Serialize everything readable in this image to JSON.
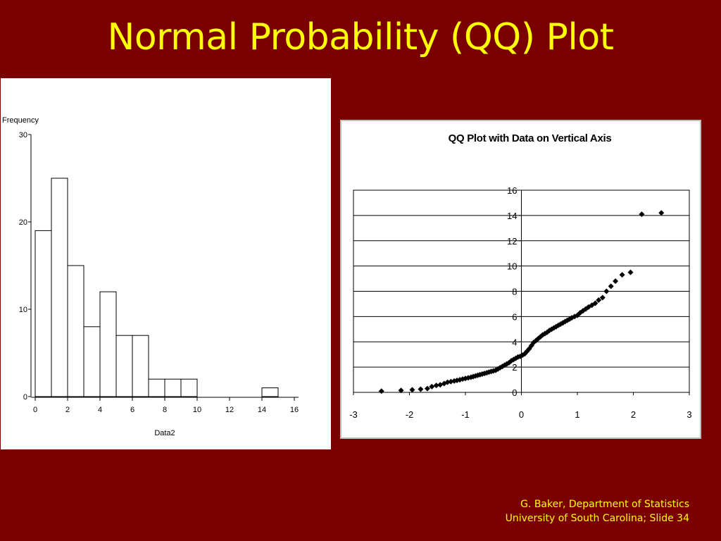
{
  "slide": {
    "title": "Normal Probability (QQ) Plot",
    "footer_line1": "G. Baker, Department of Statistics",
    "footer_line2": "University of South Carolina; Slide 34",
    "background_color": "#7a0000",
    "title_color": "#ffff00"
  },
  "chart_data": [
    {
      "type": "bar",
      "subtype": "histogram",
      "title": "",
      "xlabel": "Data2",
      "ylabel": "Frequency",
      "bin_edges": [
        0,
        1,
        2,
        3,
        4,
        5,
        6,
        7,
        8,
        9,
        10,
        11,
        12,
        13,
        14,
        15
      ],
      "values": [
        19,
        25,
        15,
        8,
        12,
        7,
        7,
        2,
        2,
        2,
        0,
        0,
        0,
        0,
        1
      ],
      "xlim": [
        0,
        16
      ],
      "ylim": [
        0,
        30
      ],
      "xticks": [
        "0",
        "2",
        "4",
        "6",
        "8",
        "10",
        "12",
        "14",
        "16"
      ],
      "yticks": [
        "0",
        "10",
        "20",
        "30"
      ],
      "grid": false
    },
    {
      "type": "scatter",
      "title": "QQ Plot with Data on Vertical Axis",
      "xlabel": "",
      "ylabel": "",
      "xlim": [
        -3,
        3
      ],
      "ylim": [
        0,
        16
      ],
      "xticks": [
        "-3",
        "-2",
        "-1",
        "0",
        "1",
        "2",
        "3"
      ],
      "yticks": [
        "0",
        "2",
        "4",
        "6",
        "8",
        "10",
        "12",
        "14",
        "16"
      ],
      "grid": true,
      "marker": "diamond",
      "marker_color": "#000000",
      "x": [
        -2.5,
        -2.15,
        -1.95,
        -1.8,
        -1.68,
        -1.6,
        -1.52,
        -1.45,
        -1.38,
        -1.32,
        -1.26,
        -1.2,
        -1.15,
        -1.1,
        -1.05,
        -1.0,
        -0.95,
        -0.9,
        -0.86,
        -0.82,
        -0.78,
        -0.74,
        -0.7,
        -0.66,
        -0.62,
        -0.58,
        -0.54,
        -0.5,
        -0.46,
        -0.42,
        -0.38,
        -0.34,
        -0.3,
        -0.26,
        -0.22,
        -0.18,
        -0.14,
        -0.1,
        -0.06,
        -0.02,
        0.02,
        0.06,
        0.1,
        0.14,
        0.18,
        0.22,
        0.26,
        0.3,
        0.34,
        0.38,
        0.42,
        0.46,
        0.5,
        0.54,
        0.58,
        0.62,
        0.66,
        0.7,
        0.74,
        0.78,
        0.82,
        0.86,
        0.9,
        0.95,
        1.0,
        1.05,
        1.1,
        1.15,
        1.2,
        1.26,
        1.32,
        1.38,
        1.45,
        1.52,
        1.6,
        1.68,
        1.8,
        1.95,
        2.15,
        2.5
      ],
      "y": [
        0.1,
        0.15,
        0.2,
        0.25,
        0.3,
        0.45,
        0.55,
        0.6,
        0.7,
        0.8,
        0.85,
        0.9,
        0.95,
        1.0,
        1.05,
        1.1,
        1.15,
        1.2,
        1.25,
        1.3,
        1.35,
        1.4,
        1.45,
        1.5,
        1.55,
        1.6,
        1.65,
        1.7,
        1.75,
        1.85,
        1.95,
        2.05,
        2.15,
        2.25,
        2.35,
        2.5,
        2.6,
        2.7,
        2.8,
        2.85,
        2.95,
        3.05,
        3.25,
        3.45,
        3.7,
        3.95,
        4.1,
        4.25,
        4.4,
        4.55,
        4.65,
        4.75,
        4.9,
        5.0,
        5.1,
        5.2,
        5.3,
        5.4,
        5.5,
        5.6,
        5.7,
        5.8,
        5.9,
        6.0,
        6.1,
        6.3,
        6.45,
        6.6,
        6.75,
        6.9,
        7.05,
        7.3,
        7.5,
        8.0,
        8.4,
        8.8,
        9.3,
        9.5,
        14.1,
        14.2
      ]
    }
  ]
}
